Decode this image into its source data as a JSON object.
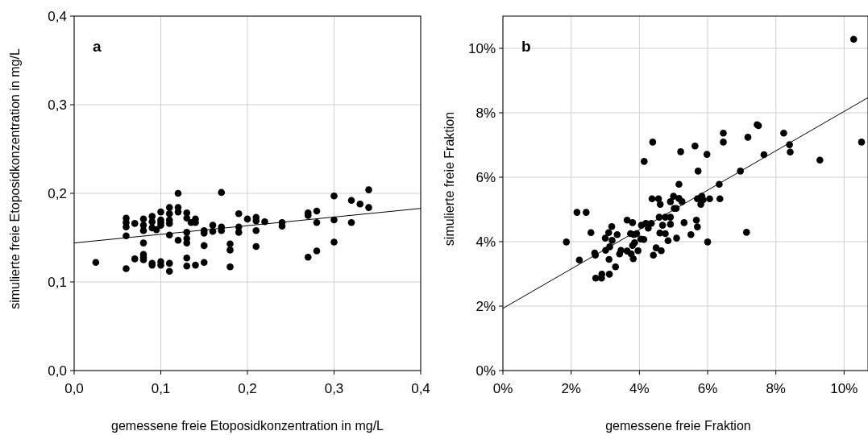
{
  "chart_data": [
    {
      "type": "scatter",
      "xlabel": "gemessene freie Etoposidkonzentration in mg/L",
      "ylabel": "simulierte freie Etoposidkonzentration in mg/L",
      "annotations": [
        "a"
      ],
      "grid": true,
      "xlim": [
        0,
        0.4
      ],
      "xticks": [
        {
          "value": 0,
          "label": "0,0"
        },
        {
          "value": 0.1,
          "label": "0,1"
        },
        {
          "value": 0.2,
          "label": "0,2"
        },
        {
          "value": 0.3,
          "label": "0,3"
        },
        {
          "value": 0.4,
          "label": "0,4"
        }
      ],
      "ylim": [
        0,
        0.4
      ],
      "yticks": [
        {
          "value": 0,
          "label": "0,0"
        },
        {
          "value": 0.1,
          "label": "0,1"
        },
        {
          "value": 0.2,
          "label": "0,2"
        },
        {
          "value": 0.3,
          "label": "0,3"
        },
        {
          "value": 0.4,
          "label": "0,4"
        }
      ],
      "series": [
        {
          "marker": "circle",
          "color": "#000000",
          "x": [
            0.025,
            0.06,
            0.06,
            0.06,
            0.06,
            0.06,
            0.07,
            0.07,
            0.08,
            0.08,
            0.08,
            0.08,
            0.08,
            0.08,
            0.08,
            0.09,
            0.09,
            0.09,
            0.09,
            0.09,
            0.095,
            0.1,
            0.1,
            0.1,
            0.1,
            0.1,
            0.1,
            0.11,
            0.11,
            0.11,
            0.11,
            0.11,
            0.11,
            0.11,
            0.12,
            0.12,
            0.12,
            0.12,
            0.13,
            0.13,
            0.13,
            0.13,
            0.13,
            0.13,
            0.13,
            0.135,
            0.14,
            0.14,
            0.14,
            0.15,
            0.15,
            0.15,
            0.15,
            0.16,
            0.16,
            0.17,
            0.17,
            0.17,
            0.18,
            0.18,
            0.18,
            0.19,
            0.19,
            0.19,
            0.2,
            0.21,
            0.21,
            0.21,
            0.21,
            0.22,
            0.24,
            0.24,
            0.27,
            0.27,
            0.27,
            0.28,
            0.28,
            0.28,
            0.3,
            0.3,
            0.3,
            0.32,
            0.32,
            0.33,
            0.34,
            0.34
          ],
          "values": [
            0.122,
            0.172,
            0.167,
            0.162,
            0.152,
            0.115,
            0.166,
            0.126,
            0.171,
            0.164,
            0.158,
            0.144,
            0.131,
            0.128,
            0.125,
            0.174,
            0.168,
            0.161,
            0.121,
            0.119,
            0.159,
            0.179,
            0.17,
            0.167,
            0.164,
            0.123,
            0.119,
            0.184,
            0.177,
            0.17,
            0.166,
            0.153,
            0.121,
            0.112,
            0.2,
            0.184,
            0.179,
            0.147,
            0.178,
            0.172,
            0.156,
            0.149,
            0.144,
            0.127,
            0.118,
            0.167,
            0.171,
            0.167,
            0.119,
            0.158,
            0.155,
            0.141,
            0.122,
            0.164,
            0.157,
            0.201,
            0.162,
            0.158,
            0.143,
            0.136,
            0.117,
            0.177,
            0.162,
            0.156,
            0.171,
            0.173,
            0.169,
            0.158,
            0.14,
            0.168,
            0.167,
            0.163,
            0.178,
            0.175,
            0.128,
            0.18,
            0.167,
            0.135,
            0.197,
            0.17,
            0.145,
            0.192,
            0.167,
            0.188,
            0.204,
            0.184
          ]
        },
        {
          "type": "line",
          "color": "#000000",
          "x": [
            0,
            0.4
          ],
          "values": [
            0.144,
            0.183
          ]
        }
      ]
    },
    {
      "type": "scatter",
      "xlabel": "gemessene freie Fraktion",
      "ylabel": "simulierte freie Fraktion",
      "annotations": [
        "b"
      ],
      "grid": true,
      "xlim": [
        0,
        10.7
      ],
      "xticks": [
        {
          "value": 0,
          "label": "0%"
        },
        {
          "value": 2,
          "label": "2%"
        },
        {
          "value": 4,
          "label": "4%"
        },
        {
          "value": 6,
          "label": "6%"
        },
        {
          "value": 8,
          "label": "8%"
        },
        {
          "value": 10,
          "label": "10%"
        }
      ],
      "ylim": [
        0,
        11
      ],
      "yticks": [
        {
          "value": 0,
          "label": "0%"
        },
        {
          "value": 2,
          "label": "2%"
        },
        {
          "value": 4,
          "label": "4%"
        },
        {
          "value": 6,
          "label": "6%"
        },
        {
          "value": 8,
          "label": "8%"
        },
        {
          "value": 10,
          "label": "10%"
        }
      ],
      "series": [
        {
          "marker": "circle",
          "color": "#000000",
          "x": [
            1.86,
            2.17,
            2.24,
            2.44,
            2.58,
            2.69,
            2.71,
            2.72,
            2.89,
            2.9,
            3.0,
            3.01,
            3.1,
            3.11,
            3.12,
            3.13,
            3.19,
            3.2,
            3.3,
            3.35,
            3.42,
            3.46,
            3.64,
            3.64,
            3.74,
            3.76,
            3.8,
            3.8,
            3.82,
            3.84,
            3.86,
            3.92,
            3.96,
            4.04,
            4.13,
            4.06,
            4.14,
            4.19,
            4.26,
            4.35,
            4.37,
            4.39,
            4.41,
            4.49,
            4.56,
            4.58,
            4.6,
            4.61,
            4.64,
            4.68,
            4.76,
            4.76,
            4.84,
            4.91,
            4.91,
            4.91,
            5.0,
            5.02,
            5.09,
            5.08,
            5.16,
            5.16,
            5.21,
            5.25,
            5.31,
            5.51,
            5.63,
            5.67,
            5.7,
            5.7,
            5.72,
            5.8,
            5.83,
            5.87,
            5.98,
            6.0,
            6.06,
            6.34,
            6.36,
            6.46,
            6.46,
            6.96,
            7.14,
            7.18,
            7.45,
            7.49,
            7.65,
            8.23,
            8.4,
            8.42,
            9.29,
            10.28,
            10.51
          ],
          "values": [
            3.99,
            4.91,
            3.43,
            4.91,
            4.28,
            3.65,
            3.58,
            2.87,
            2.87,
            2.99,
            4.11,
            3.73,
            4.28,
            3.45,
            2.99,
            3.84,
            4.47,
            4.04,
            3.22,
            4.22,
            3.62,
            3.73,
            4.67,
            3.71,
            4.25,
            3.62,
            4.59,
            3.88,
            3.47,
            4.22,
            3.97,
            4.25,
            3.72,
            4.08,
            4.07,
            4.51,
            6.49,
            4.57,
            4.42,
            4.57,
            5.33,
            7.09,
            3.58,
            3.81,
            5.33,
            4.76,
            4.27,
            5.16,
            3.72,
            4.51,
            4.76,
            4.25,
            4.03,
            4.76,
            4.54,
            5.24,
            5.41,
            5.03,
            4.11,
            5.03,
            5.78,
            5.34,
            6.79,
            5.24,
            4.59,
            4.22,
            6.97,
            4.67,
            4.46,
            5.33,
            6.19,
            5.16,
            5.41,
            5.3,
            6.71,
            3.99,
            5.33,
            5.78,
            5.33,
            7.37,
            7.09,
            6.19,
            4.29,
            7.24,
            7.63,
            7.6,
            6.7,
            7.37,
            7.01,
            6.78,
            6.53,
            10.28,
            7.09
          ]
        },
        {
          "type": "line",
          "color": "#000000",
          "x": [
            0,
            10.7
          ],
          "values": [
            1.93,
            8.47
          ]
        }
      ]
    }
  ]
}
